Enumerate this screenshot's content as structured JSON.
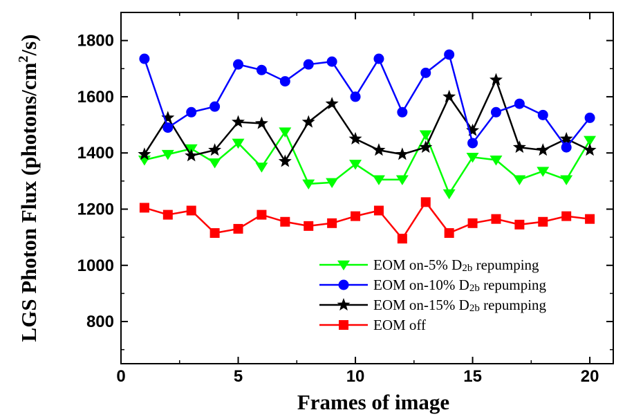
{
  "chart_data": {
    "type": "line",
    "xlabel": "Frames of image",
    "ylabel": {
      "main": "LGS Photon Flux (photons/cm",
      "sup": "2",
      "tail": "/s)"
    },
    "xlim": [
      0,
      21
    ],
    "ylim": [
      650,
      1900
    ],
    "xticks": [
      0,
      5,
      10,
      15,
      20
    ],
    "yticks": [
      800,
      1000,
      1200,
      1400,
      1600,
      1800
    ],
    "grid": false,
    "legend_position": "bottom-right",
    "x": [
      1,
      2,
      3,
      4,
      5,
      6,
      7,
      8,
      9,
      10,
      11,
      12,
      13,
      14,
      15,
      16,
      17,
      18,
      19,
      20
    ],
    "series": [
      {
        "name": "EOM on-5% D2b repumping",
        "label_parts": [
          "EOM on-5% D",
          "2b",
          " repumping"
        ],
        "color": "#00ff00",
        "marker": "triangle-down",
        "values": [
          1375,
          1395,
          1415,
          1365,
          1435,
          1350,
          1475,
          1290,
          1295,
          1360,
          1305,
          1305,
          1465,
          1255,
          1385,
          1375,
          1305,
          1335,
          1305,
          1445
        ]
      },
      {
        "name": "EOM on-10% D2b repumping",
        "label_parts": [
          "EOM on-10% D",
          "2b",
          " repumping"
        ],
        "color": "#0000ff",
        "marker": "circle",
        "values": [
          1735,
          1490,
          1545,
          1565,
          1715,
          1695,
          1655,
          1715,
          1725,
          1600,
          1735,
          1545,
          1685,
          1750,
          1435,
          1545,
          1575,
          1535,
          1420,
          1525
        ]
      },
      {
        "name": "EOM on-15% D2b repumping",
        "label_parts": [
          "EOM on-15% D",
          "2b",
          " repumping"
        ],
        "color": "#000000",
        "marker": "star",
        "values": [
          1395,
          1525,
          1390,
          1410,
          1510,
          1505,
          1370,
          1510,
          1575,
          1450,
          1410,
          1395,
          1420,
          1600,
          1480,
          1660,
          1420,
          1410,
          1450,
          1410
        ]
      },
      {
        "name": "EOM off",
        "label_parts": [
          "EOM off",
          "",
          ""
        ],
        "color": "#ff0000",
        "marker": "square",
        "values": [
          1205,
          1180,
          1195,
          1115,
          1130,
          1180,
          1155,
          1140,
          1150,
          1175,
          1195,
          1095,
          1225,
          1115,
          1150,
          1165,
          1145,
          1155,
          1175,
          1165
        ]
      }
    ]
  }
}
